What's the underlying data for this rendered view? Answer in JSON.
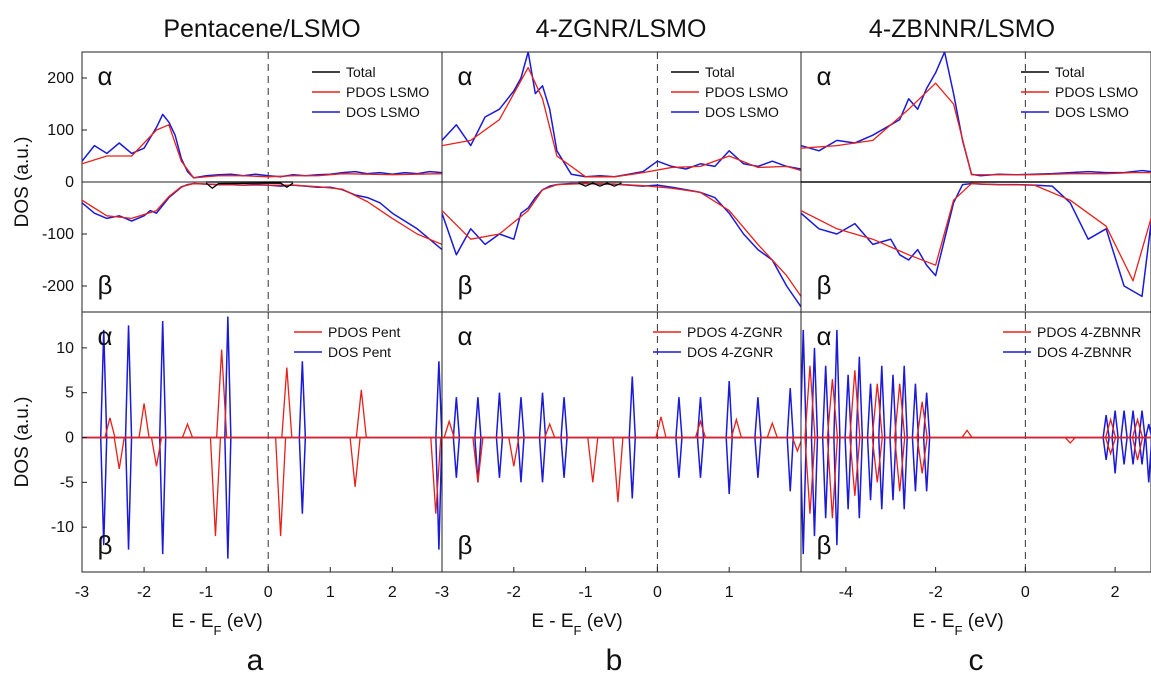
{
  "titles": [
    "Pentacene/LSMO",
    "4-ZGNR/LSMO",
    "4-ZBNNR/LSMO"
  ],
  "panel_letters": [
    "a",
    "b",
    "c"
  ],
  "xlabel": {
    "main": "E - E",
    "sub": "F",
    "unit": " (eV)"
  },
  "ylabel": "DOS (a.u.)",
  "spin_labels": {
    "up": "α",
    "down": "β"
  },
  "colors": {
    "total": "#000000",
    "pdos": "#e8201a",
    "dos": "#1a1ad8",
    "axis": "#222222"
  },
  "chart_data": [
    {
      "type": "line",
      "panel": "a",
      "row": "top",
      "xlim": [
        -3,
        2.8
      ],
      "ylim": [
        -250,
        250
      ],
      "yticks": [
        -200,
        -100,
        0,
        100,
        200
      ],
      "xticks": [],
      "legend": [
        "Total",
        "PDOS LSMO",
        "DOS LSMO"
      ],
      "series": [
        {
          "name": "DOS LSMO",
          "role": "dos",
          "x": [
            -3,
            -2.8,
            -2.6,
            -2.4,
            -2.2,
            -2.0,
            -1.9,
            -1.8,
            -1.7,
            -1.6,
            -1.5,
            -1.4,
            -1.3,
            -1.2,
            -1.0,
            -0.8,
            -0.6,
            -0.4,
            -0.2,
            0,
            0.2,
            0.4,
            0.6,
            0.8,
            1.0,
            1.2,
            1.4,
            1.6,
            1.8,
            2.0,
            2.2,
            2.4,
            2.6,
            2.8
          ],
          "up": [
            40,
            70,
            55,
            75,
            55,
            65,
            85,
            105,
            130,
            115,
            90,
            45,
            20,
            8,
            12,
            14,
            15,
            12,
            15,
            12,
            10,
            14,
            12,
            14,
            15,
            18,
            20,
            16,
            18,
            15,
            18,
            16,
            20,
            18
          ],
          "down": [
            -40,
            -60,
            -70,
            -65,
            -75,
            -65,
            -55,
            -60,
            -45,
            -30,
            -20,
            -10,
            -5,
            -3,
            -4,
            -5,
            -5,
            -6,
            -5,
            -6,
            -8,
            -6,
            -8,
            -10,
            -10,
            -15,
            -25,
            -30,
            -40,
            -60,
            -75,
            -90,
            -110,
            -130
          ]
        },
        {
          "name": "PDOS LSMO",
          "role": "pdos",
          "x": [
            -3,
            -2.6,
            -2.2,
            -1.8,
            -1.6,
            -1.4,
            -1.2,
            -0.8,
            -0.4,
            0,
            0.4,
            0.8,
            1.2,
            1.6,
            2.0,
            2.4,
            2.8
          ],
          "up": [
            35,
            50,
            50,
            100,
            110,
            40,
            8,
            12,
            12,
            10,
            12,
            12,
            16,
            15,
            14,
            15,
            16
          ],
          "down": [
            -35,
            -65,
            -70,
            -55,
            -28,
            -9,
            -3,
            -5,
            -6,
            -6,
            -6,
            -9,
            -14,
            -38,
            -70,
            -100,
            -120
          ]
        },
        {
          "name": "Total",
          "role": "total",
          "x": [
            -1.0,
            -0.9,
            -0.8,
            0.2,
            0.3,
            0.4
          ],
          "up": [
            0,
            0,
            0,
            0,
            0,
            0
          ],
          "down": [
            -2,
            -12,
            -3,
            -2,
            -10,
            -2
          ]
        }
      ]
    },
    {
      "type": "line",
      "panel": "b",
      "row": "top",
      "xlim": [
        -3,
        2
      ],
      "ylim": [
        -250,
        250
      ],
      "yticks": [],
      "xticks": [],
      "legend": [
        "Total",
        "PDOS LSMO",
        "DOS LSMO"
      ],
      "series": [
        {
          "name": "DOS LSMO",
          "role": "dos",
          "x": [
            -3,
            -2.8,
            -2.6,
            -2.4,
            -2.2,
            -2.0,
            -1.9,
            -1.8,
            -1.7,
            -1.6,
            -1.5,
            -1.4,
            -1.2,
            -1.0,
            -0.8,
            -0.6,
            -0.4,
            -0.2,
            0,
            0.2,
            0.4,
            0.6,
            0.8,
            1.0,
            1.2,
            1.4,
            1.6,
            1.8,
            2.0
          ],
          "up": [
            80,
            110,
            70,
            125,
            140,
            175,
            200,
            250,
            170,
            185,
            140,
            60,
            15,
            10,
            12,
            10,
            15,
            20,
            40,
            30,
            25,
            35,
            30,
            60,
            35,
            30,
            40,
            30,
            25
          ],
          "down": [
            -60,
            -140,
            -90,
            -120,
            -100,
            -110,
            -60,
            -50,
            -30,
            -15,
            -8,
            -5,
            -3,
            -3,
            -4,
            -4,
            -6,
            -8,
            -6,
            -10,
            -15,
            -20,
            -30,
            -60,
            -100,
            -130,
            -150,
            -200,
            -240
          ]
        },
        {
          "name": "PDOS LSMO",
          "role": "pdos",
          "x": [
            -3,
            -2.6,
            -2.2,
            -1.8,
            -1.6,
            -1.4,
            -1.0,
            -0.6,
            -0.2,
            0.2,
            0.6,
            1.0,
            1.4,
            1.8,
            2.0
          ],
          "up": [
            70,
            80,
            120,
            220,
            160,
            50,
            10,
            10,
            18,
            28,
            30,
            50,
            28,
            30,
            22
          ],
          "down": [
            -55,
            -110,
            -100,
            -55,
            -15,
            -5,
            -3,
            -4,
            -7,
            -12,
            -20,
            -55,
            -120,
            -180,
            -220
          ]
        },
        {
          "name": "Total",
          "role": "total",
          "x": [
            -1.1,
            -1.0,
            -0.9,
            -0.8,
            -0.7,
            -0.6,
            -0.5
          ],
          "up": [
            0,
            0,
            0,
            0,
            0,
            0,
            0
          ],
          "down": [
            -2,
            -8,
            -2,
            -8,
            -2,
            -8,
            -2
          ]
        }
      ]
    },
    {
      "type": "line",
      "panel": "c",
      "row": "top",
      "xlim": [
        -5,
        2.8
      ],
      "ylim": [
        -250,
        250
      ],
      "yticks": [],
      "xticks": [],
      "legend": [
        "Total",
        "PDOS LSMO",
        "DOS LSMO"
      ],
      "series": [
        {
          "name": "DOS LSMO",
          "role": "dos",
          "x": [
            -5,
            -4.6,
            -4.2,
            -3.8,
            -3.4,
            -3.0,
            -2.8,
            -2.6,
            -2.4,
            -2.2,
            -2.0,
            -1.8,
            -1.6,
            -1.4,
            -1.2,
            -1.0,
            -0.6,
            -0.2,
            0.2,
            0.6,
            1.0,
            1.4,
            1.8,
            2.2,
            2.6,
            2.8
          ],
          "up": [
            70,
            60,
            80,
            75,
            90,
            110,
            120,
            160,
            140,
            180,
            210,
            250,
            170,
            80,
            15,
            12,
            15,
            14,
            15,
            16,
            18,
            20,
            18,
            18,
            22,
            20
          ],
          "down": [
            -60,
            -90,
            -100,
            -80,
            -120,
            -110,
            -140,
            -150,
            -130,
            -160,
            -180,
            -110,
            -40,
            -5,
            -3,
            -4,
            -5,
            -5,
            -6,
            -8,
            -40,
            -110,
            -90,
            -200,
            -220,
            -80
          ]
        },
        {
          "name": "PDOS LSMO",
          "role": "pdos",
          "x": [
            -5,
            -4.2,
            -3.4,
            -2.6,
            -2.0,
            -1.6,
            -1.2,
            -0.6,
            0.2,
            1.0,
            1.8,
            2.4,
            2.8
          ],
          "up": [
            65,
            70,
            80,
            140,
            190,
            150,
            14,
            14,
            14,
            16,
            16,
            18,
            18
          ],
          "down": [
            -55,
            -90,
            -110,
            -140,
            -160,
            -35,
            -3,
            -5,
            -6,
            -35,
            -85,
            -190,
            -70
          ]
        },
        {
          "name": "Total",
          "role": "total",
          "x": [
            -5,
            2.8
          ],
          "up": [
            0,
            0
          ],
          "down": [
            0,
            0
          ]
        }
      ]
    },
    {
      "type": "line",
      "panel": "a",
      "row": "bottom",
      "xlim": [
        -3,
        2.8
      ],
      "ylim": [
        -15,
        14
      ],
      "yticks": [
        -10,
        -5,
        0,
        5,
        10
      ],
      "xticks": [
        -3,
        -2,
        -1,
        0,
        1,
        2
      ],
      "legend": [
        "PDOS Pent",
        "DOS Pent"
      ],
      "series": [
        {
          "name": "DOS Pent",
          "role": "dos",
          "spikes": [
            [
              -2.65,
              12
            ],
            [
              -2.65,
              -12
            ],
            [
              -2.25,
              12.5
            ],
            [
              -2.25,
              -12.5
            ],
            [
              -1.7,
              13
            ],
            [
              -1.7,
              -13
            ],
            [
              -0.65,
              13.5
            ],
            [
              -0.65,
              -13.5
            ],
            [
              0.55,
              8.5
            ],
            [
              0.55,
              -8.5
            ],
            [
              2.75,
              8.5
            ],
            [
              2.75,
              -12.5
            ]
          ]
        },
        {
          "name": "PDOS Pent",
          "role": "pdos",
          "spikes": [
            [
              -2.55,
              2.2
            ],
            [
              -2.4,
              -3.5
            ],
            [
              -2.0,
              3.8
            ],
            [
              -1.8,
              -3.2
            ],
            [
              -1.3,
              1.5
            ],
            [
              -0.85,
              -11.0
            ],
            [
              -0.75,
              9.8
            ],
            [
              0.2,
              -11.0
            ],
            [
              0.3,
              7.8
            ],
            [
              1.4,
              -5.5
            ],
            [
              1.5,
              5.3
            ],
            [
              2.7,
              -8.5
            ]
          ]
        }
      ]
    },
    {
      "type": "line",
      "panel": "b",
      "row": "bottom",
      "xlim": [
        -3,
        2
      ],
      "ylim": [
        -15,
        14
      ],
      "yticks": [],
      "xticks": [
        -3,
        -2,
        -1,
        0,
        1
      ],
      "legend": [
        "PDOS 4-ZGNR",
        "DOS 4-ZGNR"
      ],
      "series": [
        {
          "name": "DOS 4-ZGNR",
          "role": "dos",
          "spikes": [
            [
              -2.8,
              4.5
            ],
            [
              -2.8,
              -4.5
            ],
            [
              -2.5,
              4.5
            ],
            [
              -2.5,
              -5
            ],
            [
              -2.2,
              5
            ],
            [
              -2.2,
              -4.5
            ],
            [
              -1.9,
              4.5
            ],
            [
              -1.9,
              -5
            ],
            [
              -1.6,
              5
            ],
            [
              -1.6,
              -5
            ],
            [
              -1.3,
              4.5
            ],
            [
              -1.3,
              -4.5
            ],
            [
              -0.35,
              6.8
            ],
            [
              -0.35,
              -6.8
            ],
            [
              0.3,
              4.5
            ],
            [
              0.3,
              -4.5
            ],
            [
              0.6,
              4.5
            ],
            [
              0.6,
              -4.5
            ],
            [
              1.0,
              6.3
            ],
            [
              1.0,
              -6.3
            ],
            [
              1.4,
              4.5
            ],
            [
              1.4,
              -4.5
            ],
            [
              1.85,
              5.5
            ],
            [
              1.85,
              -6
            ]
          ]
        },
        {
          "name": "PDOS 4-ZGNR",
          "role": "pdos",
          "spikes": [
            [
              -2.9,
              1.8
            ],
            [
              -2.5,
              -5
            ],
            [
              -2.0,
              -3.2
            ],
            [
              -1.5,
              1.5
            ],
            [
              -0.9,
              -5
            ],
            [
              -0.55,
              -7.2
            ],
            [
              0.05,
              2.3
            ],
            [
              0.6,
              1.8
            ],
            [
              1.1,
              2.0
            ],
            [
              1.6,
              1.6
            ],
            [
              1.95,
              -1.5
            ]
          ]
        }
      ]
    },
    {
      "type": "line",
      "panel": "c",
      "row": "bottom",
      "xlim": [
        -5,
        2.8
      ],
      "ylim": [
        -15,
        14
      ],
      "yticks": [],
      "xticks": [
        -4,
        -2,
        0,
        2
      ],
      "legend": [
        "PDOS 4-ZBNNR",
        "DOS 4-ZBNNR"
      ],
      "series": [
        {
          "name": "DOS 4-ZBNNR",
          "role": "dos",
          "spikes": [
            [
              -4.95,
              12
            ],
            [
              -4.95,
              -13
            ],
            [
              -4.7,
              10
            ],
            [
              -4.7,
              -11
            ],
            [
              -4.45,
              8
            ],
            [
              -4.45,
              -9
            ],
            [
              -4.2,
              12
            ],
            [
              -4.2,
              -12
            ],
            [
              -3.95,
              7
            ],
            [
              -3.95,
              -8
            ],
            [
              -3.7,
              9
            ],
            [
              -3.7,
              -9
            ],
            [
              -3.45,
              6
            ],
            [
              -3.45,
              -7
            ],
            [
              -3.2,
              8
            ],
            [
              -3.2,
              -8
            ],
            [
              -2.95,
              7
            ],
            [
              -2.95,
              -7
            ],
            [
              -2.7,
              8
            ],
            [
              -2.7,
              -8
            ],
            [
              -2.45,
              6
            ],
            [
              -2.45,
              -6
            ],
            [
              -2.2,
              5
            ],
            [
              -2.2,
              -6
            ],
            [
              1.8,
              2.5
            ],
            [
              1.8,
              -2.5
            ],
            [
              2.0,
              3
            ],
            [
              2.0,
              -4
            ],
            [
              2.2,
              3
            ],
            [
              2.2,
              -3
            ],
            [
              2.4,
              3
            ],
            [
              2.4,
              -3
            ],
            [
              2.6,
              3
            ],
            [
              2.6,
              -3
            ],
            [
              2.75,
              1.5
            ],
            [
              2.75,
              -5
            ]
          ]
        },
        {
          "name": "PDOS 4-ZBNNR",
          "role": "pdos",
          "spikes": [
            [
              -4.8,
              8
            ],
            [
              -4.8,
              -8.5
            ],
            [
              -4.3,
              6.5
            ],
            [
              -4.3,
              -9
            ],
            [
              -3.8,
              7.5
            ],
            [
              -3.8,
              -6.5
            ],
            [
              -3.3,
              6
            ],
            [
              -3.3,
              -5
            ],
            [
              -2.8,
              6
            ],
            [
              -2.8,
              -6
            ],
            [
              -2.3,
              4
            ],
            [
              -2.3,
              -4
            ],
            [
              -1.3,
              0.8
            ],
            [
              1.0,
              -0.6
            ],
            [
              1.9,
              2
            ],
            [
              1.9,
              -1.8
            ],
            [
              2.5,
              2
            ],
            [
              2.5,
              -2.5
            ]
          ]
        }
      ]
    }
  ]
}
